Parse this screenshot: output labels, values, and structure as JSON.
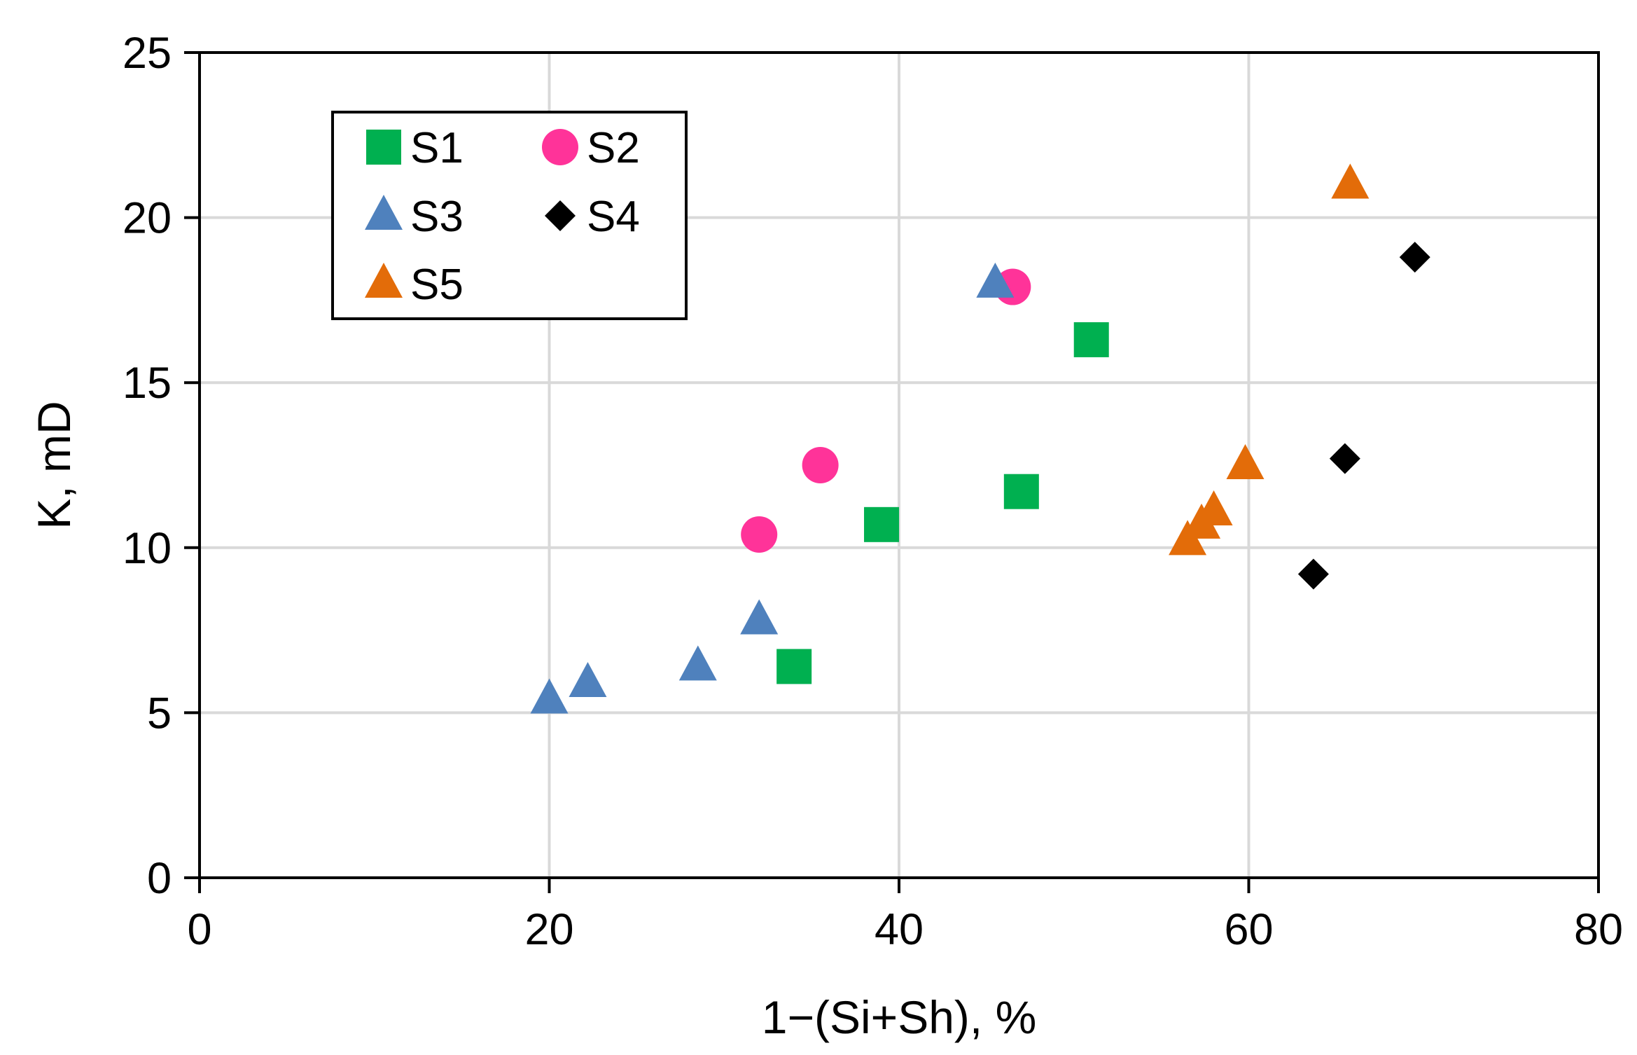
{
  "chart_data": {
    "type": "scatter",
    "title": "",
    "xlabel": "1−(Si+Sh), %",
    "ylabel": "K, mD",
    "xlim": [
      0,
      80
    ],
    "ylim": [
      0,
      25
    ],
    "xticks": [
      0,
      20,
      40,
      60,
      80
    ],
    "yticks": [
      0,
      5,
      10,
      15,
      20,
      25
    ],
    "xtick_labels": [
      "0",
      "20",
      "40",
      "60",
      "80"
    ],
    "ytick_labels": [
      "0",
      "5",
      "10",
      "15",
      "20",
      "25"
    ],
    "grid": true,
    "legend_position": "top-left",
    "series": [
      {
        "name": "S1",
        "marker": "square",
        "color": "#00B050",
        "points": [
          [
            34,
            6.4
          ],
          [
            39,
            10.7
          ],
          [
            47,
            11.7
          ],
          [
            51,
            16.3
          ]
        ]
      },
      {
        "name": "S2",
        "marker": "circle",
        "color": "#FF3399",
        "points": [
          [
            32,
            10.4
          ],
          [
            35.5,
            12.5
          ],
          [
            46.5,
            17.9
          ]
        ]
      },
      {
        "name": "S3",
        "marker": "triangle",
        "color": "#4F81BD",
        "points": [
          [
            20,
            5.4
          ],
          [
            22.2,
            5.9
          ],
          [
            28.5,
            6.4
          ],
          [
            32,
            7.8
          ],
          [
            45.5,
            18.0
          ]
        ]
      },
      {
        "name": "S4",
        "marker": "diamond",
        "color": "#000000",
        "points": [
          [
            63.7,
            9.2
          ],
          [
            65.5,
            12.7
          ],
          [
            69.5,
            18.8
          ]
        ]
      },
      {
        "name": "S5",
        "marker": "triangle",
        "color": "#E36C09",
        "points": [
          [
            56.5,
            10.2
          ],
          [
            57.3,
            10.7
          ],
          [
            58,
            11.1
          ],
          [
            59.8,
            12.5
          ],
          [
            65.8,
            21.0
          ]
        ]
      }
    ]
  }
}
